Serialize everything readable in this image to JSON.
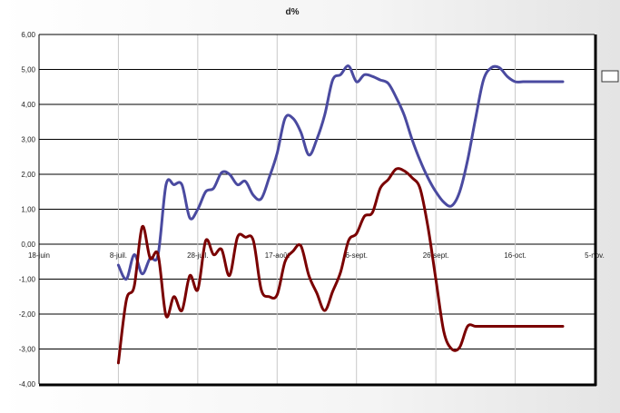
{
  "chart_data": {
    "type": "line",
    "title": "d%",
    "xlabel": "",
    "ylabel": "",
    "ylim": [
      -4,
      6
    ],
    "yticks": [
      -4,
      -3,
      -2,
      -1,
      0,
      1,
      2,
      3,
      4,
      5,
      6
    ],
    "ytick_labels": [
      "-4,00",
      "-3,00",
      "-2,00",
      "-1,00",
      "0,00",
      "1,00",
      "2,00",
      "3,00",
      "4,00",
      "5,00",
      "6,00"
    ],
    "xlim": [
      0,
      140
    ],
    "x_unit": "days from 18-juin",
    "xticks": [
      0,
      20,
      40,
      60,
      80,
      100,
      120,
      140
    ],
    "xtick_labels": [
      "18-juin",
      "8-juil.",
      "28-juil.",
      "17-août",
      "6-sept.",
      "26-sept.",
      "16-oct.",
      "5-nov."
    ],
    "grid": true,
    "legend_position": "right",
    "series": [
      {
        "color": "#4a4aa0",
        "x": [
          20,
          22,
          24,
          26,
          28,
          30,
          32,
          34,
          36,
          38,
          40,
          42,
          44,
          46,
          48,
          50,
          52,
          54,
          56,
          58,
          60,
          62,
          64,
          66,
          68,
          70,
          72,
          74,
          76,
          78,
          80,
          82,
          84,
          86,
          88,
          90,
          92,
          94,
          96,
          98,
          100,
          102,
          104,
          106,
          108,
          110,
          112,
          114,
          116,
          118,
          120,
          122,
          124,
          126,
          128,
          130,
          132
        ],
        "values": [
          -0.6,
          -1.0,
          -0.3,
          -0.85,
          -0.4,
          -0.3,
          1.7,
          1.7,
          1.7,
          0.75,
          1.0,
          1.5,
          1.6,
          2.05,
          2.0,
          1.7,
          1.8,
          1.4,
          1.3,
          1.9,
          2.6,
          3.6,
          3.6,
          3.2,
          2.55,
          3.0,
          3.7,
          4.7,
          4.85,
          5.1,
          4.65,
          4.85,
          4.8,
          4.7,
          4.6,
          4.2,
          3.7,
          3.0,
          2.4,
          1.9,
          1.5,
          1.2,
          1.1,
          1.5,
          2.4,
          3.6,
          4.7,
          5.05,
          5.05,
          4.8,
          4.65,
          4.65,
          4.65,
          4.65,
          4.65,
          4.65,
          4.65
        ]
      },
      {
        "color": "#7a0000",
        "x": [
          20,
          22,
          24,
          26,
          28,
          30,
          32,
          34,
          36,
          38,
          40,
          42,
          44,
          46,
          48,
          50,
          52,
          54,
          56,
          58,
          60,
          62,
          64,
          66,
          68,
          70,
          72,
          74,
          76,
          78,
          80,
          82,
          84,
          86,
          88,
          90,
          92,
          94,
          96,
          98,
          100,
          102,
          104,
          106,
          108,
          110,
          112,
          114,
          116,
          118,
          120,
          122,
          124,
          126,
          128,
          130,
          132
        ],
        "values": [
          -3.4,
          -1.6,
          -1.2,
          0.5,
          -0.4,
          -0.3,
          -2.05,
          -1.5,
          -1.9,
          -0.9,
          -1.3,
          0.1,
          -0.3,
          -0.15,
          -0.9,
          0.2,
          0.2,
          0.1,
          -1.3,
          -1.5,
          -1.45,
          -0.5,
          -0.2,
          -0.05,
          -0.9,
          -1.4,
          -1.9,
          -1.35,
          -0.8,
          0.1,
          0.3,
          0.8,
          0.9,
          1.6,
          1.85,
          2.15,
          2.1,
          1.9,
          1.6,
          0.5,
          -1.0,
          -2.5,
          -3.0,
          -2.95,
          -2.35,
          -2.35,
          -2.35,
          -2.35,
          -2.35,
          -2.35,
          -2.35,
          -2.35,
          -2.35,
          -2.35,
          -2.35,
          -2.35,
          -2.35
        ]
      }
    ]
  }
}
